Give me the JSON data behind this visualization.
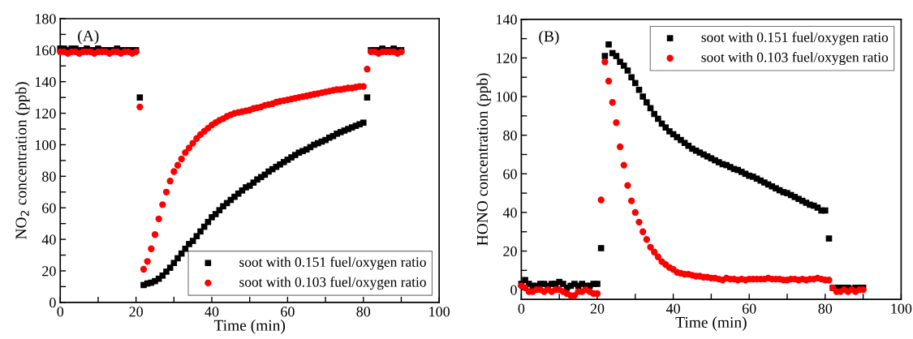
{
  "chart_data": [
    {
      "type": "scatter",
      "xlabel": "Time (min)",
      "ylabel": "NO$_{2}$ concentration (ppb)",
      "annotations": [
        "(A)"
      ],
      "legend": "bottom right",
      "x": [
        0,
        1,
        2,
        3,
        4,
        5,
        6,
        7,
        8,
        9,
        10,
        11,
        12,
        13,
        14,
        15,
        16,
        17,
        18,
        19,
        20,
        21,
        22,
        23,
        24,
        25,
        26,
        27,
        28,
        29,
        30,
        31,
        32,
        33,
        34,
        35,
        36,
        37,
        38,
        39,
        40,
        41,
        42,
        43,
        44,
        45,
        46,
        47,
        48,
        49,
        50,
        51,
        52,
        53,
        54,
        55,
        56,
        57,
        58,
        59,
        60,
        61,
        62,
        63,
        64,
        65,
        66,
        67,
        68,
        69,
        70,
        71,
        72,
        73,
        74,
        75,
        76,
        77,
        78,
        79,
        80,
        81,
        82,
        83,
        84,
        85,
        86,
        87,
        88,
        89,
        90
      ],
      "xlim": [
        0,
        100
      ],
      "xticks": [
        0,
        {
          "value": 10,
          "label": null
        },
        20,
        {
          "value": 30,
          "label": null
        },
        40,
        {
          "value": 50,
          "label": null
        },
        60,
        {
          "value": 70,
          "label": null
        },
        80,
        {
          "value": 90,
          "label": null
        },
        100
      ],
      "ylim": [
        0,
        180
      ],
      "yticks": [
        0,
        {
          "value": 10,
          "label": null
        },
        20,
        {
          "value": 30,
          "label": null
        },
        40,
        {
          "value": 50,
          "label": null
        },
        60,
        {
          "value": 70,
          "label": null
        },
        80,
        {
          "value": 90,
          "label": null
        },
        100,
        {
          "value": 110,
          "label": null
        },
        120,
        {
          "value": 130,
          "label": null
        },
        140,
        {
          "value": 150,
          "label": null
        },
        160,
        {
          "value": 170,
          "label": null
        },
        180
      ],
      "series": [
        {
          "name": "soot with 0.151 fuel/oxygen ratio",
          "color": "#000000",
          "marker": "square",
          "values": [
            161,
            161,
            160,
            161,
            161,
            160,
            160,
            161,
            160,
            160,
            161,
            160,
            160,
            160,
            160,
            161,
            160,
            160,
            160,
            160,
            160,
            130,
            11,
            12,
            12.5,
            13.5,
            15,
            17,
            19.5,
            22,
            25,
            28,
            31,
            34,
            37,
            39,
            42,
            45,
            48,
            51,
            54,
            56,
            58.5,
            61,
            63,
            65,
            67,
            69,
            71,
            73,
            74,
            76,
            78,
            79.5,
            81,
            83,
            84.5,
            86,
            87.5,
            89,
            90.5,
            92,
            93.5,
            95,
            96,
            97,
            98.5,
            100,
            101,
            102,
            103,
            104.5,
            105.5,
            107,
            108,
            109,
            110,
            111,
            112,
            113,
            114,
            130,
            160,
            160,
            160,
            161,
            160,
            160,
            161,
            160,
            160
          ]
        },
        {
          "name": "soot with 0.103 fuel/oxygen ratio",
          "color": "#ff0000",
          "marker": "circle",
          "values": [
            159,
            159,
            158,
            159,
            159,
            158,
            159,
            159,
            159,
            158,
            159,
            159,
            159,
            158,
            159,
            159,
            158,
            159,
            159,
            158,
            159,
            124,
            21,
            26,
            34,
            43,
            53,
            62,
            70,
            77,
            83,
            87,
            91,
            95,
            98,
            101,
            104,
            106.5,
            108.5,
            110.5,
            112.5,
            114,
            115.5,
            116.5,
            118,
            119,
            120,
            120.5,
            121,
            121.5,
            122,
            123,
            123.5,
            124,
            125,
            125.5,
            126,
            127,
            127.5,
            128,
            128.5,
            129,
            129.5,
            130,
            130.5,
            131,
            131.5,
            132,
            132.5,
            133,
            133.5,
            134,
            134.5,
            135,
            135,
            135.5,
            136,
            136,
            136.5,
            137,
            137,
            148,
            159,
            159,
            158,
            159,
            159,
            159,
            159,
            158,
            159
          ]
        }
      ]
    },
    {
      "type": "scatter",
      "xlabel": "Time (min)",
      "ylabel": "HONO concentration (ppb)",
      "annotations": [
        "(B)"
      ],
      "legend": "top right",
      "x": [
        0,
        1,
        2,
        3,
        4,
        5,
        6,
        7,
        8,
        9,
        10,
        11,
        12,
        13,
        14,
        15,
        16,
        17,
        18,
        19,
        20,
        21,
        22,
        23,
        24,
        25,
        26,
        27,
        28,
        29,
        30,
        31,
        32,
        33,
        34,
        35,
        36,
        37,
        38,
        39,
        40,
        41,
        42,
        43,
        44,
        45,
        46,
        47,
        48,
        49,
        50,
        51,
        52,
        53,
        54,
        55,
        56,
        57,
        58,
        59,
        60,
        61,
        62,
        63,
        64,
        65,
        66,
        67,
        68,
        69,
        70,
        71,
        72,
        73,
        74,
        75,
        76,
        77,
        78,
        79,
        80,
        81,
        82,
        83,
        84,
        85,
        86,
        87,
        88,
        89,
        90
      ],
      "xlim": [
        0,
        100
      ],
      "xticks": [
        0,
        {
          "value": 10,
          "label": null
        },
        20,
        {
          "value": 30,
          "label": null
        },
        40,
        {
          "value": 50,
          "label": null
        },
        60,
        {
          "value": 70,
          "label": null
        },
        80,
        {
          "value": 90,
          "label": null
        },
        100
      ],
      "ylim": [
        -5,
        140
      ],
      "yticks": [
        0,
        {
          "value": 10,
          "label": null
        },
        20,
        {
          "value": 30,
          "label": null
        },
        40,
        {
          "value": 50,
          "label": null
        },
        60,
        {
          "value": 70,
          "label": null
        },
        80,
        {
          "value": 90,
          "label": null
        },
        100,
        {
          "value": 110,
          "label": null
        },
        120,
        {
          "value": 130,
          "label": null
        },
        140
      ],
      "series": [
        {
          "name": "soot with 0.151 fuel/oxygen ratio",
          "color": "#000000",
          "marker": "square",
          "values": [
            3,
            5,
            3,
            2,
            2,
            3,
            3,
            2,
            3,
            3,
            4,
            3,
            1,
            2,
            3,
            2,
            3,
            2,
            2,
            3,
            3,
            21.5,
            121,
            127,
            122.5,
            121,
            118,
            116,
            113.5,
            110,
            107,
            103.5,
            100,
            97,
            94,
            91,
            88.5,
            86,
            84,
            82,
            80.5,
            79,
            77.5,
            76,
            74.5,
            73,
            72,
            71,
            70,
            69,
            68,
            67,
            66,
            65,
            64.5,
            63.5,
            62.5,
            62,
            61,
            60,
            59,
            58.5,
            57.5,
            56.5,
            55.5,
            54.5,
            53.5,
            52.5,
            51.5,
            50.5,
            50,
            49,
            48,
            47,
            46,
            45,
            44,
            43.5,
            42.5,
            41,
            41,
            26.5,
            1,
            1,
            1,
            1,
            1,
            0.5,
            1,
            1,
            1
          ]
        },
        {
          "name": "soot with 0.103 fuel/oxygen ratio",
          "color": "#ff0000",
          "marker": "circle",
          "values": [
            2,
            1,
            -1,
            -1,
            0,
            0,
            -1,
            0,
            -1,
            0,
            0,
            -1,
            -2,
            -3,
            -3,
            -1,
            -1,
            0,
            -1,
            -2,
            -2,
            46.5,
            118,
            108,
            97,
            86.5,
            74,
            64.5,
            54,
            46,
            40,
            35,
            30,
            26,
            22,
            19.5,
            17,
            14.5,
            13,
            11.5,
            10.5,
            9,
            8.5,
            8,
            8,
            7.5,
            7,
            7,
            6.5,
            6.5,
            6,
            6,
            5.5,
            5,
            6,
            5.5,
            5.5,
            5,
            5.5,
            5,
            5.5,
            5.5,
            5.5,
            5.5,
            5.5,
            6,
            5.5,
            5.5,
            5.5,
            5,
            5,
            5.5,
            5.5,
            5,
            5.5,
            5,
            5.5,
            5.5,
            6,
            5.5,
            5,
            5,
            1,
            -1,
            -1,
            0,
            -1,
            0,
            -1,
            0,
            0
          ]
        }
      ]
    }
  ]
}
